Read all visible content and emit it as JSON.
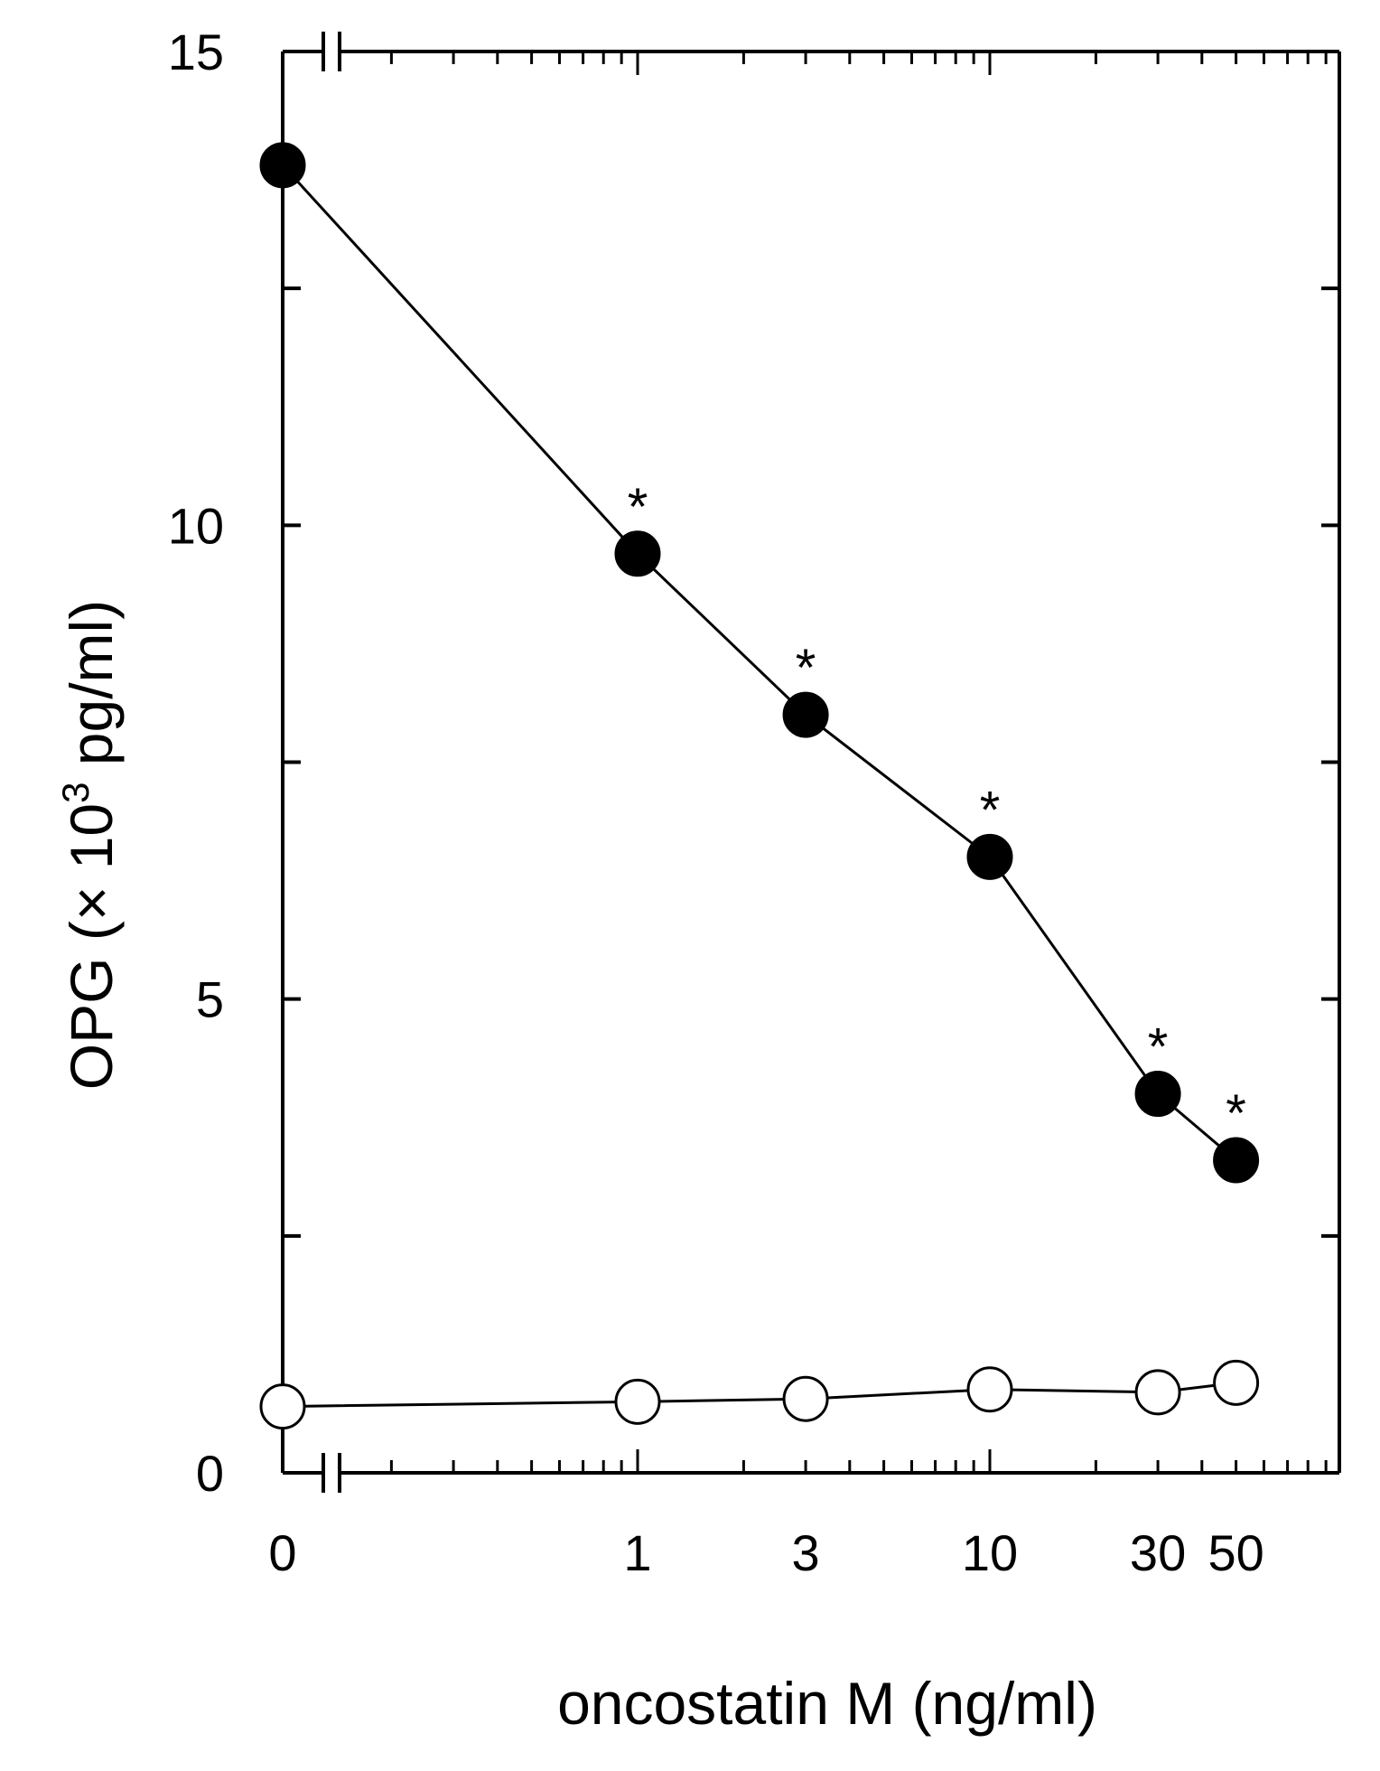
{
  "chart_data": {
    "type": "line",
    "title": "",
    "xlabel": "oncostatin M (ng/ml)",
    "ylabel_parts": {
      "before": "OPG (× 10",
      "superscript": "3",
      "after": " pg/ml)"
    },
    "x_scale": "log",
    "x_axis_break": true,
    "xlim": [
      0.1,
      100
    ],
    "ylim": [
      0,
      15
    ],
    "x_tick_labels": [
      "0",
      "1",
      "3",
      "10",
      "30",
      "50"
    ],
    "x_tick_values": [
      0.1,
      1,
      3,
      10,
      30,
      50
    ],
    "y_tick_values": [
      0,
      5,
      10,
      15
    ],
    "y_tick_labels": [
      "0",
      "5",
      "10",
      "15"
    ],
    "y_minor_ticks": [
      2.5,
      7.5,
      12.5
    ],
    "grid": false,
    "legend": "none",
    "x": [
      0,
      1,
      3,
      10,
      30,
      50
    ],
    "series": [
      {
        "marker": "filled-circle",
        "color": "#000000",
        "values": [
          13.8,
          9.7,
          8.0,
          6.5,
          4.0,
          3.3
        ],
        "significance": [
          "",
          "*",
          "*",
          "*",
          "*",
          "*"
        ]
      },
      {
        "marker": "open-circle",
        "color": "#000000",
        "values": [
          0.7,
          0.75,
          0.78,
          0.88,
          0.85,
          0.95
        ],
        "significance": [
          "",
          "",
          "",
          "",
          "",
          ""
        ]
      }
    ]
  }
}
